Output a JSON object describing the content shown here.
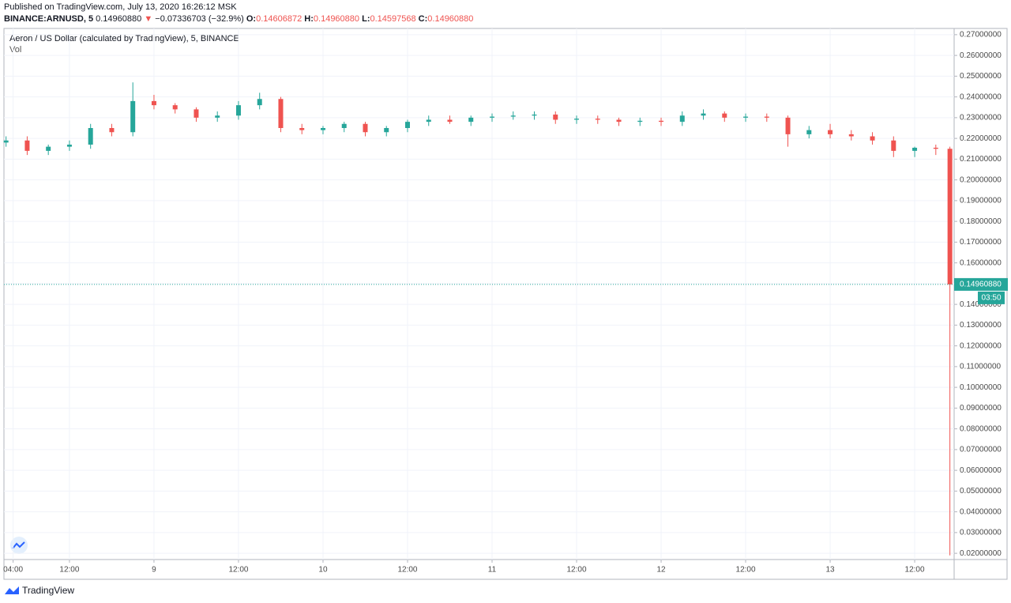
{
  "header": {
    "published": "Published on TradingView.com, July 13, 2020 16:26:12 MSK",
    "symbol": "BINANCE:ARNUSD, 5",
    "price": "0.14960880",
    "arrow": "▼",
    "change": "−0.07336703 (−32.9%)",
    "o_label": "O:",
    "o_value": "0.14606872",
    "h_label": "H:",
    "h_value": "0.14960880",
    "l_label": "L:",
    "l_value": "0.14597568",
    "c_label": "C:",
    "c_value": "0.14960880"
  },
  "chart_data": {
    "type": "candlestick",
    "title": "Aeron / US Dollar (calculated by TradingView), 5, BINANCE",
    "subtitle": "Vol",
    "up_color": "#26a69a",
    "down_color": "#ef5350",
    "grid": true,
    "x": [
      3,
      6,
      9,
      12,
      15,
      18,
      21,
      24,
      27,
      30,
      33,
      36,
      39,
      42,
      45,
      48,
      51,
      54,
      57,
      60,
      63,
      66,
      69,
      72,
      75,
      78,
      81,
      84,
      87,
      90,
      93,
      96,
      99,
      102,
      105,
      108,
      111,
      114,
      117,
      120,
      123,
      126,
      129,
      132,
      135,
      137
    ],
    "open": [
      0.218,
      0.219,
      0.214,
      0.216,
      0.217,
      0.225,
      0.223,
      0.238,
      0.236,
      0.234,
      0.23,
      0.231,
      0.236,
      0.239,
      0.225,
      0.224,
      0.225,
      0.227,
      0.223,
      0.225,
      0.228,
      0.229,
      0.228,
      0.23,
      0.2305,
      0.231,
      0.2315,
      0.229,
      0.2295,
      0.229,
      0.228,
      0.2285,
      0.228,
      0.231,
      0.232,
      0.23,
      0.2305,
      0.23,
      0.222,
      0.224,
      0.222,
      0.221,
      0.219,
      0.214,
      0.2155,
      0.215
    ],
    "high": [
      0.221,
      0.221,
      0.217,
      0.219,
      0.227,
      0.227,
      0.247,
      0.241,
      0.237,
      0.235,
      0.233,
      0.238,
      0.242,
      0.24,
      0.227,
      0.226,
      0.228,
      0.228,
      0.226,
      0.229,
      0.231,
      0.231,
      0.231,
      0.232,
      0.233,
      0.233,
      0.233,
      0.231,
      0.231,
      0.23,
      0.23,
      0.23,
      0.233,
      0.234,
      0.233,
      0.232,
      0.232,
      0.231,
      0.226,
      0.227,
      0.224,
      0.223,
      0.221,
      0.216,
      0.217,
      0.216
    ],
    "low": [
      0.216,
      0.212,
      0.212,
      0.214,
      0.215,
      0.221,
      0.221,
      0.234,
      0.232,
      0.228,
      0.228,
      0.229,
      0.234,
      0.223,
      0.222,
      0.222,
      0.223,
      0.221,
      0.221,
      0.223,
      0.226,
      0.227,
      0.226,
      0.228,
      0.229,
      0.229,
      0.227,
      0.227,
      0.227,
      0.226,
      0.226,
      0.226,
      0.226,
      0.229,
      0.228,
      0.228,
      0.228,
      0.216,
      0.22,
      0.22,
      0.219,
      0.217,
      0.211,
      0.211,
      0.212,
      0.019
    ],
    "close": [
      0.219,
      0.214,
      0.216,
      0.217,
      0.225,
      0.223,
      0.238,
      0.236,
      0.234,
      0.23,
      0.231,
      0.236,
      0.239,
      0.225,
      0.224,
      0.225,
      0.227,
      0.223,
      0.225,
      0.228,
      0.229,
      0.228,
      0.23,
      0.2305,
      0.231,
      0.2315,
      0.229,
      0.2295,
      0.229,
      0.228,
      0.2285,
      0.228,
      0.231,
      0.232,
      0.23,
      0.2305,
      0.23,
      0.222,
      0.224,
      0.222,
      0.221,
      0.219,
      0.214,
      0.2155,
      0.215,
      0.1496088
    ],
    "xlim": [
      2.7,
      137.6
    ],
    "xticks": [
      {
        "value": 4,
        "label": "04:00"
      },
      {
        "value": 12,
        "label": "12:00"
      },
      {
        "value": 24,
        "label": "9"
      },
      {
        "value": 36,
        "label": "12:00"
      },
      {
        "value": 48,
        "label": "10"
      },
      {
        "value": 60,
        "label": "12:00"
      },
      {
        "value": 72,
        "label": "11"
      },
      {
        "value": 84,
        "label": "12:00"
      },
      {
        "value": 96,
        "label": "12"
      },
      {
        "value": 108,
        "label": "12:00"
      },
      {
        "value": 120,
        "label": "13"
      },
      {
        "value": 132,
        "label": "12:00"
      }
    ],
    "ylim": [
      0.017,
      0.273
    ],
    "yticks": [
      {
        "value": 0.02,
        "label": "0.02000000"
      },
      {
        "value": 0.03,
        "label": "0.03000000"
      },
      {
        "value": 0.04,
        "label": "0.04000000"
      },
      {
        "value": 0.05,
        "label": "0.05000000"
      },
      {
        "value": 0.06,
        "label": "0.06000000"
      },
      {
        "value": 0.07,
        "label": "0.07000000"
      },
      {
        "value": 0.08,
        "label": "0.08000000"
      },
      {
        "value": 0.09,
        "label": "0.09000000"
      },
      {
        "value": 0.1,
        "label": "0.10000000"
      },
      {
        "value": 0.11,
        "label": "0.11000000"
      },
      {
        "value": 0.12,
        "label": "0.12000000"
      },
      {
        "value": 0.13,
        "label": "0.13000000"
      },
      {
        "value": 0.14,
        "label": "0.14000000"
      },
      {
        "value": 0.15,
        "label": "0.15000000"
      },
      {
        "value": 0.16,
        "label": "0.16000000"
      },
      {
        "value": 0.17,
        "label": "0.17000000"
      },
      {
        "value": 0.18,
        "label": "0.18000000"
      },
      {
        "value": 0.19,
        "label": "0.19000000"
      },
      {
        "value": 0.2,
        "label": "0.20000000"
      },
      {
        "value": 0.21,
        "label": "0.21000000"
      },
      {
        "value": 0.22,
        "label": "0.22000000"
      },
      {
        "value": 0.23,
        "label": "0.23000000"
      },
      {
        "value": 0.24,
        "label": "0.24000000"
      },
      {
        "value": 0.25,
        "label": "0.25000000"
      },
      {
        "value": 0.26,
        "label": "0.26000000"
      },
      {
        "value": 0.27,
        "label": "0.27000000"
      }
    ],
    "last_price": {
      "value": 0.1496088,
      "label": "0.14960880"
    },
    "last_color": "#26a69a",
    "countdown": "03:50"
  },
  "footer": {
    "brand": "TradingView"
  }
}
